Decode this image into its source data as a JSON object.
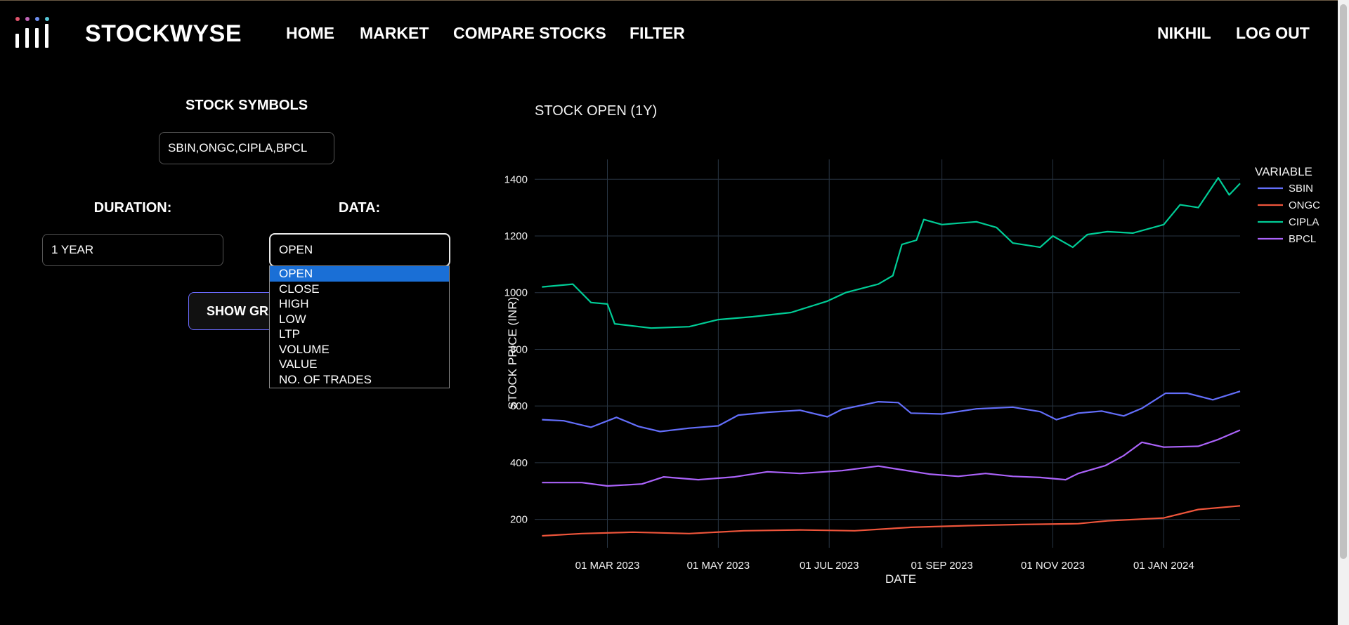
{
  "header": {
    "brand": "STOCKWYSE",
    "nav": [
      "HOME",
      "MARKET",
      "COMPARE STOCKS",
      "FILTER"
    ],
    "user": "NIKHIL",
    "logout": "LOG OUT",
    "logo_colors": [
      "#e1546c",
      "#c266b8",
      "#6f8ff0",
      "#56c8d8"
    ]
  },
  "form": {
    "symbols_label": "STOCK SYMBOLS",
    "symbols_value": "SBIN,ONGC,CIPLA,BPCL",
    "duration_label": "DURATION:",
    "duration_value": "1 YEAR",
    "data_label": "DATA:",
    "data_value": "OPEN",
    "data_options": [
      "OPEN",
      "CLOSE",
      "HIGH",
      "LOW",
      "LTP",
      "VOLUME",
      "VALUE",
      "NO. OF TRADES"
    ],
    "selected_option": "OPEN",
    "button_label": "SHOW GRAPH"
  },
  "chart_data": {
    "type": "line",
    "title": "STOCK OPEN (1Y)",
    "xlabel": "DATE",
    "ylabel": "STOCK PRICE (INR)",
    "legend_title": "VARIABLE",
    "legend_position": "right",
    "grid": true,
    "xlim": [
      "2023-01-20",
      "2024-02-12"
    ],
    "ylim": [
      100,
      1470
    ],
    "x_ticks": [
      "01 MAR 2023",
      "01 MAY 2023",
      "01 JUL 2023",
      "01 SEP 2023",
      "01 NOV 2023",
      "01 JAN 2024"
    ],
    "x_tick_dates": [
      "2023-03-01",
      "2023-05-01",
      "2023-07-01",
      "2023-09-01",
      "2023-11-01",
      "2024-01-01"
    ],
    "y_ticks": [
      200,
      400,
      600,
      800,
      1000,
      1200,
      1400
    ],
    "series": [
      {
        "name": "SBIN",
        "color": "#636efa",
        "points": [
          [
            "2023-01-24",
            552
          ],
          [
            "2023-02-05",
            548
          ],
          [
            "2023-02-20",
            525
          ],
          [
            "2023-03-06",
            560
          ],
          [
            "2023-03-18",
            528
          ],
          [
            "2023-03-30",
            510
          ],
          [
            "2023-04-15",
            522
          ],
          [
            "2023-05-01",
            530
          ],
          [
            "2023-05-12",
            568
          ],
          [
            "2023-05-28",
            578
          ],
          [
            "2023-06-15",
            585
          ],
          [
            "2023-06-30",
            562
          ],
          [
            "2023-07-08",
            588
          ],
          [
            "2023-07-28",
            615
          ],
          [
            "2023-08-08",
            612
          ],
          [
            "2023-08-15",
            575
          ],
          [
            "2023-09-01",
            572
          ],
          [
            "2023-09-20",
            590
          ],
          [
            "2023-10-10",
            596
          ],
          [
            "2023-10-25",
            580
          ],
          [
            "2023-11-03",
            552
          ],
          [
            "2023-11-15",
            575
          ],
          [
            "2023-11-28",
            582
          ],
          [
            "2023-12-10",
            565
          ],
          [
            "2023-12-20",
            592
          ],
          [
            "2024-01-02",
            645
          ],
          [
            "2024-01-14",
            645
          ],
          [
            "2024-01-28",
            622
          ],
          [
            "2024-02-12",
            652
          ]
        ]
      },
      {
        "name": "ONGC",
        "color": "#ef553b",
        "points": [
          [
            "2023-01-24",
            142
          ],
          [
            "2023-02-15",
            150
          ],
          [
            "2023-03-15",
            155
          ],
          [
            "2023-04-15",
            150
          ],
          [
            "2023-05-15",
            160
          ],
          [
            "2023-06-15",
            163
          ],
          [
            "2023-07-15",
            160
          ],
          [
            "2023-08-15",
            172
          ],
          [
            "2023-09-15",
            178
          ],
          [
            "2023-10-15",
            182
          ],
          [
            "2023-11-15",
            185
          ],
          [
            "2023-12-01",
            195
          ],
          [
            "2024-01-01",
            205
          ],
          [
            "2024-01-20",
            235
          ],
          [
            "2024-02-12",
            248
          ]
        ]
      },
      {
        "name": "CIPLA",
        "color": "#00cc96",
        "points": [
          [
            "2023-01-24",
            1020
          ],
          [
            "2023-02-10",
            1030
          ],
          [
            "2023-02-20",
            965
          ],
          [
            "2023-03-01",
            960
          ],
          [
            "2023-03-05",
            890
          ],
          [
            "2023-03-25",
            875
          ],
          [
            "2023-04-15",
            880
          ],
          [
            "2023-05-01",
            905
          ],
          [
            "2023-05-20",
            915
          ],
          [
            "2023-06-10",
            930
          ],
          [
            "2023-06-30",
            970
          ],
          [
            "2023-07-10",
            1000
          ],
          [
            "2023-07-28",
            1030
          ],
          [
            "2023-08-05",
            1060
          ],
          [
            "2023-08-10",
            1170
          ],
          [
            "2023-08-18",
            1185
          ],
          [
            "2023-08-22",
            1258
          ],
          [
            "2023-09-01",
            1240
          ],
          [
            "2023-09-10",
            1245
          ],
          [
            "2023-09-20",
            1250
          ],
          [
            "2023-10-01",
            1230
          ],
          [
            "2023-10-10",
            1175
          ],
          [
            "2023-10-25",
            1160
          ],
          [
            "2023-11-01",
            1200
          ],
          [
            "2023-11-12",
            1160
          ],
          [
            "2023-11-20",
            1205
          ],
          [
            "2023-12-01",
            1215
          ],
          [
            "2023-12-15",
            1210
          ],
          [
            "2024-01-01",
            1240
          ],
          [
            "2024-01-10",
            1310
          ],
          [
            "2024-01-20",
            1300
          ],
          [
            "2024-01-31",
            1405
          ],
          [
            "2024-02-06",
            1345
          ],
          [
            "2024-02-12",
            1385
          ]
        ]
      },
      {
        "name": "BPCL",
        "color": "#ab63fa",
        "points": [
          [
            "2023-01-24",
            330
          ],
          [
            "2023-02-15",
            330
          ],
          [
            "2023-03-01",
            318
          ],
          [
            "2023-03-20",
            325
          ],
          [
            "2023-04-01",
            350
          ],
          [
            "2023-04-20",
            340
          ],
          [
            "2023-05-10",
            350
          ],
          [
            "2023-05-28",
            368
          ],
          [
            "2023-06-15",
            362
          ],
          [
            "2023-07-08",
            372
          ],
          [
            "2023-07-28",
            388
          ],
          [
            "2023-08-10",
            375
          ],
          [
            "2023-08-25",
            360
          ],
          [
            "2023-09-10",
            352
          ],
          [
            "2023-09-25",
            362
          ],
          [
            "2023-10-10",
            352
          ],
          [
            "2023-10-25",
            348
          ],
          [
            "2023-11-08",
            340
          ],
          [
            "2023-11-15",
            362
          ],
          [
            "2023-11-30",
            390
          ],
          [
            "2023-12-10",
            425
          ],
          [
            "2023-12-20",
            472
          ],
          [
            "2024-01-01",
            455
          ],
          [
            "2024-01-20",
            458
          ],
          [
            "2024-01-31",
            482
          ],
          [
            "2024-02-12",
            515
          ]
        ]
      }
    ]
  }
}
